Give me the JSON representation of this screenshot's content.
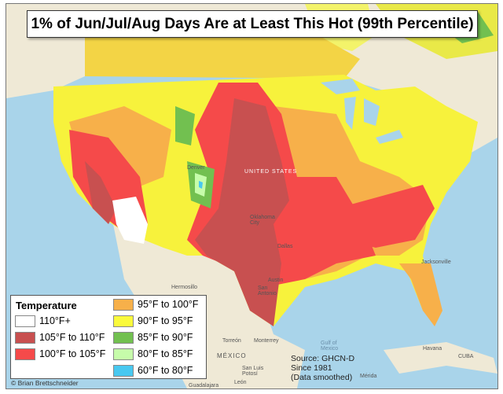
{
  "title": "1% of Jun/Jul/Aug Days Are at Least This Hot (99th Percentile)",
  "legend": {
    "heading": "Temperature",
    "items": [
      {
        "label": "110°F+",
        "color": "#ffffff"
      },
      {
        "label": "105°F to 110°F",
        "color": "#c85050"
      },
      {
        "label": "100°F to 105°F",
        "color": "#f54a4a"
      },
      {
        "label": "95°F to 100°F",
        "color": "#f7b04a"
      },
      {
        "label": "90°F to 95°F",
        "color": "#fafa3c"
      },
      {
        "label": "85°F to 90°F",
        "color": "#72c050"
      },
      {
        "label": "80°F to 85°F",
        "color": "#c6fcaa"
      },
      {
        "label": "60°F to 80°F",
        "color": "#48c8f0"
      }
    ]
  },
  "source": {
    "line1": "Source: GHCN-D",
    "line2": "Since 1981",
    "line3": "(Data smoothed)"
  },
  "credit": "© Brian Brettschneider",
  "map_labels": {
    "hermosillo": "Hermosillo",
    "torreon": "Torreón",
    "monterrey": "Monterrey",
    "mexico": "MÉXICO",
    "slp": "San Luis Potosí",
    "leon": "León",
    "guadalajara": "Guadalajara",
    "gulf": "Gulf of Mexico",
    "havana": "Havana",
    "cuba": "CUBA",
    "merida": "Mérida",
    "us": "UNITED STATES",
    "okc": "Oklahoma City",
    "dallas": "Dallas",
    "austin": "Austin",
    "sanantonio": "San Antonio",
    "jacksonville": "Jacksonville",
    "denver": "Denver"
  }
}
